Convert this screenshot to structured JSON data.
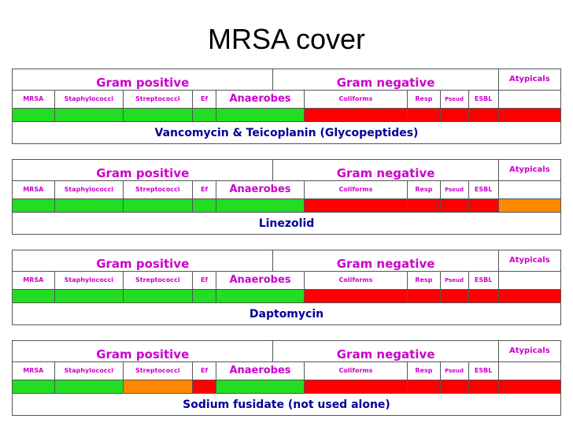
{
  "title": "MRSA cover",
  "headers": {
    "gram_positive": "Gram positive",
    "gram_negative": "Gram negative",
    "atypicals": "Atypicals",
    "mrsa": "MRSA",
    "staphylococci": "Staphylococci",
    "streptococci": "Streptococci",
    "ef": "Ef",
    "anaerobes": "Anaerobes",
    "coliforms": "Coliforms",
    "resp": "Resp",
    "pseud": "Pseud",
    "esbl": "ESBL"
  },
  "colors": {
    "green": "#22dd22",
    "red": "#ff0000",
    "orange": "#ff8800"
  },
  "panels": [
    {
      "drug": "Vancomycin & Teicoplanin (Glycopeptides)",
      "coverage": [
        "green",
        "green",
        "green",
        "green",
        "green",
        "red",
        "red",
        "red",
        "red",
        "red"
      ]
    },
    {
      "drug": "Linezolid",
      "coverage": [
        "green",
        "green",
        "green",
        "green",
        "green",
        "red",
        "red",
        "red",
        "red",
        "orange"
      ]
    },
    {
      "drug": "Daptomycin",
      "coverage": [
        "green",
        "green",
        "green",
        "green",
        "green",
        "red",
        "red",
        "red",
        "red",
        "red"
      ]
    },
    {
      "drug": "Sodium fusidate (not used alone)",
      "coverage": [
        "green",
        "green",
        "orange",
        "red",
        "green",
        "red",
        "red",
        "red",
        "red",
        "red"
      ]
    }
  ]
}
